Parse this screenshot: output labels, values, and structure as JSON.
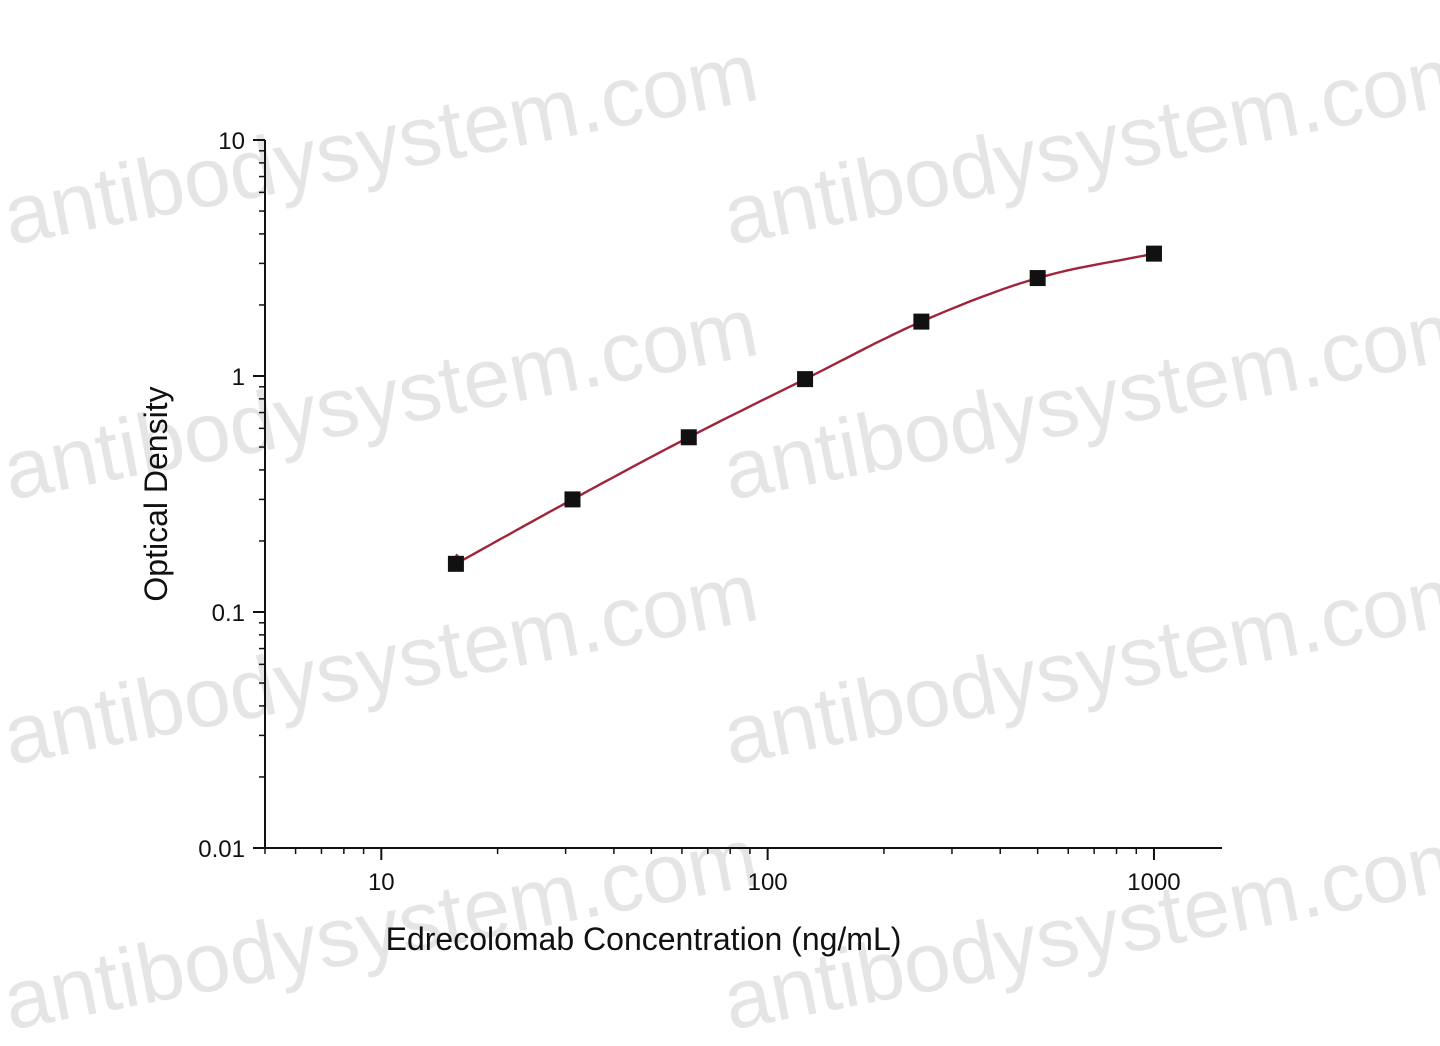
{
  "watermark": {
    "text": "antibodysystem.com",
    "color": "#c8c8c8"
  },
  "chart_data": {
    "type": "scatter",
    "title": "",
    "xlabel": "Edrecolomab Concentration (ng/mL)",
    "ylabel": "Optical Density",
    "x_scale": "log",
    "y_scale": "log",
    "xlim": [
      5,
      1500
    ],
    "ylim": [
      0.01,
      10
    ],
    "x_ticks": [
      {
        "value": 10,
        "label": "10"
      },
      {
        "value": 100,
        "label": "100"
      },
      {
        "value": 1000,
        "label": "1000"
      }
    ],
    "y_ticks": [
      {
        "value": 0.01,
        "label": "0.01"
      },
      {
        "value": 0.1,
        "label": "0.1"
      },
      {
        "value": 1,
        "label": "1"
      },
      {
        "value": 10,
        "label": "10"
      }
    ],
    "grid": false,
    "legend": "none",
    "series": [
      {
        "marker": "square",
        "marker_color": "#111111",
        "line_color": "#a0243a",
        "fit": "4PL curve",
        "points": [
          {
            "x": 15.6,
            "y": 0.16
          },
          {
            "x": 31.25,
            "y": 0.3
          },
          {
            "x": 62.5,
            "y": 0.55
          },
          {
            "x": 125,
            "y": 0.97
          },
          {
            "x": 250,
            "y": 1.7
          },
          {
            "x": 500,
            "y": 2.6
          },
          {
            "x": 1000,
            "y": 3.3
          }
        ]
      }
    ]
  }
}
